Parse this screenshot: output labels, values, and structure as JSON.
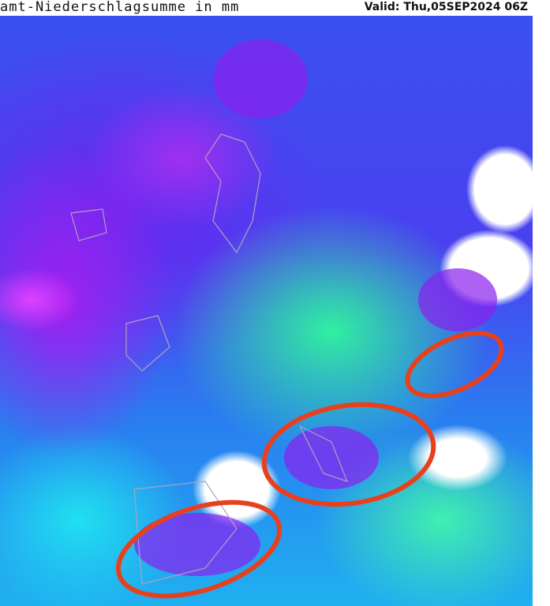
{
  "header": {
    "title": "amt-Niederschlagsumme in mm",
    "valid": "Valid: Thu,05SEP2024 06Z"
  },
  "map": {
    "annotation_color": "#e8401c",
    "highlight_regions": [
      "east-europe-region",
      "italy-balkans-region",
      "iberia-region"
    ]
  }
}
